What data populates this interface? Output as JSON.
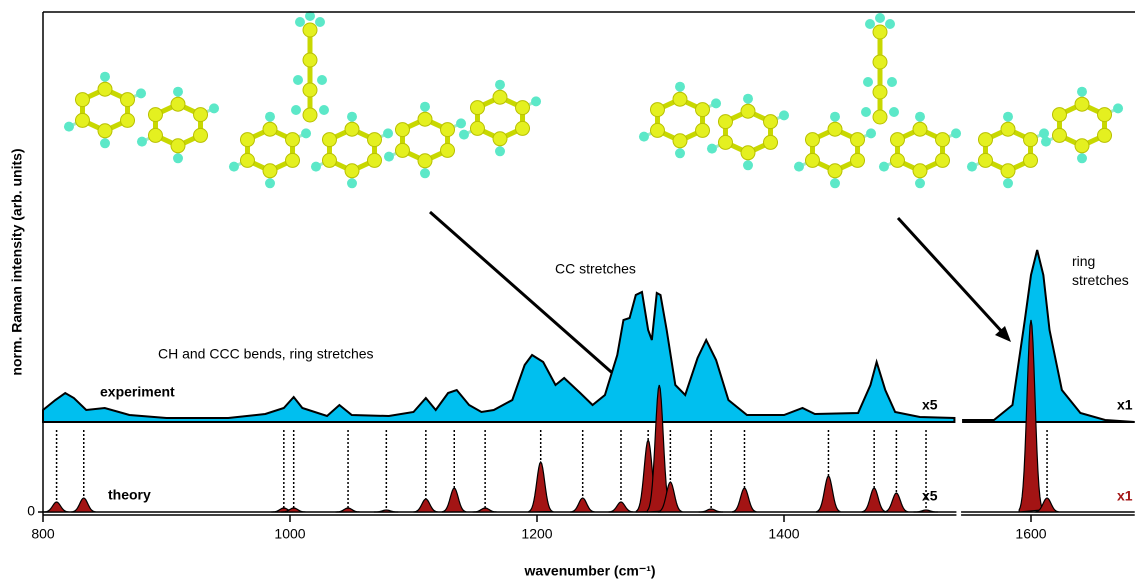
{
  "chart_data": {
    "type": "spectrum",
    "xlabel": "wavenumber (cm⁻¹)",
    "ylabel": "norm. Raman intensity (arb. units)",
    "xlim": [
      800,
      1684
    ],
    "ylim": [
      0,
      500
    ],
    "xticks": [
      800,
      1000,
      1200,
      1400,
      1600
    ],
    "yticks": [
      0
    ],
    "series": [
      {
        "name": "experiment",
        "color": "#00bfef",
        "x": [
          800,
          810,
          818,
          825,
          835,
          850,
          870,
          900,
          950,
          980,
          995,
          1003,
          1010,
          1030,
          1040,
          1050,
          1080,
          1100,
          1110,
          1118,
          1128,
          1135,
          1145,
          1155,
          1165,
          1180,
          1190,
          1196,
          1205,
          1215,
          1222,
          1235,
          1245,
          1255,
          1265,
          1270,
          1275,
          1280,
          1285,
          1290,
          1293,
          1297,
          1300,
          1305,
          1312,
          1320,
          1330,
          1337,
          1345,
          1355,
          1370,
          1400,
          1415,
          1425,
          1460,
          1470,
          1475,
          1482,
          1490,
          1510,
          1538,
          1541,
          1545,
          1570,
          1585,
          1595,
          1600,
          1605,
          1610,
          1615,
          1625,
          1640,
          1660,
          1684
        ],
        "values": [
          102,
          112,
          119,
          114,
          102,
          104,
          97,
          94,
          94,
          98,
          104,
          115,
          104,
          96,
          107,
          97,
          96,
          100,
          114,
          102,
          119,
          122,
          107,
          100,
          102,
          112,
          147,
          157,
          150,
          127,
          134,
          119,
          107,
          117,
          157,
          192,
          194,
          217,
          220,
          182,
          172,
          219,
          217,
          182,
          127,
          117,
          154,
          172,
          152,
          112,
          97,
          97,
          104,
          98,
          99,
          127,
          150,
          122,
          100,
          95,
          94,
          null,
          92,
          92,
          107,
          192,
          237,
          262,
          237,
          182,
          122,
          99,
          92,
          90
        ]
      },
      {
        "name": "theory",
        "color": "#a31414",
        "x": [
          811,
          833,
          995,
          1003,
          1047,
          1078,
          1110,
          1133,
          1158,
          1203,
          1237,
          1268,
          1290,
          1299,
          1308,
          1341,
          1368,
          1436,
          1473,
          1491,
          1515,
          1600,
          1613
        ],
        "values": [
          10,
          14,
          4,
          4,
          4,
          2,
          13,
          24,
          4,
          50,
          14,
          10,
          72,
          127,
          30,
          3,
          24,
          36,
          24,
          19,
          2,
          192,
          14
        ]
      }
    ],
    "annotations": [
      "CH and CCC bends, ring stretches",
      "CC stretches",
      "ring stretches"
    ],
    "scale_labels": [
      "x5",
      "x5",
      "x1",
      "x1"
    ]
  }
}
